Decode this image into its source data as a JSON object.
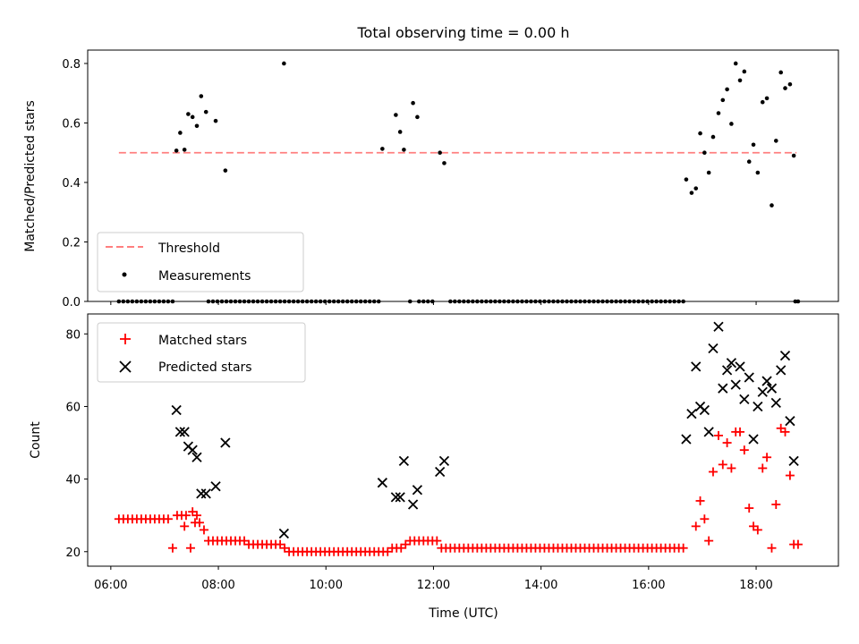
{
  "chart_data": [
    {
      "type": "scatter",
      "title": "Total observing time = 0.00 h",
      "xlabel": "",
      "ylabel": "Matched/Predicted stars",
      "xlim": [
        5.57,
        19.53
      ],
      "ylim": [
        0.0,
        0.845
      ],
      "xticks": [
        6,
        8,
        10,
        12,
        14,
        16,
        18
      ],
      "yticks": [
        0.0,
        0.2,
        0.4,
        0.6,
        0.8
      ],
      "ytick_labels": [
        "0.0",
        "0.2",
        "0.4",
        "0.6",
        "0.8"
      ],
      "legend": {
        "placement": "lower-left",
        "entries": [
          "Threshold",
          "Measurements"
        ]
      },
      "threshold": {
        "name": "Threshold",
        "y": 0.5,
        "x_range": [
          6.15,
          18.75
        ],
        "color": "#ff7f7f",
        "style": "dashed"
      },
      "measurements": {
        "name": "Measurements",
        "color": "#000000",
        "x": [
          7.22,
          7.29,
          7.37,
          7.44,
          7.52,
          7.6,
          7.68,
          7.77,
          7.95,
          8.13,
          9.22,
          11.05,
          11.3,
          11.38,
          11.45,
          11.62,
          11.7,
          12.12,
          12.2,
          16.7,
          16.8,
          16.88,
          16.96,
          17.04,
          17.12,
          17.2,
          17.3,
          17.38,
          17.46,
          17.54,
          17.62,
          17.7,
          17.78,
          17.87,
          17.95,
          18.03,
          18.12,
          18.2,
          18.29,
          18.37,
          18.46,
          18.54,
          18.63,
          18.7
        ],
        "y": [
          0.507,
          0.567,
          0.51,
          0.63,
          0.62,
          0.59,
          0.69,
          0.637,
          0.607,
          0.44,
          0.8,
          0.513,
          0.627,
          0.57,
          0.51,
          0.667,
          0.62,
          0.5,
          0.465,
          0.41,
          0.365,
          0.38,
          0.565,
          0.5,
          0.433,
          0.553,
          0.633,
          0.677,
          0.713,
          0.597,
          0.8,
          0.743,
          0.773,
          0.47,
          0.527,
          0.433,
          0.67,
          0.683,
          0.323,
          0.54,
          0.77,
          0.717,
          0.73,
          0.49
        ]
      },
      "zero_measurements": {
        "x_start": 6.15,
        "x_step": 0.0833,
        "count": 152,
        "gaps": [
          [
            7.15,
            7.75
          ],
          [
            8.0,
            8.05
          ],
          [
            8.12,
            8.13
          ],
          [
            9.2,
            9.23
          ],
          [
            11.0,
            11.55
          ],
          [
            11.62,
            11.7
          ],
          [
            12.05,
            12.25
          ],
          [
            16.7,
            18.7
          ]
        ]
      }
    },
    {
      "type": "scatter",
      "title": "",
      "xlabel": "Time (UTC)",
      "ylabel": "Count",
      "xlim": [
        5.57,
        19.53
      ],
      "ylim": [
        16.0,
        85.5
      ],
      "xticks": [
        6,
        8,
        10,
        12,
        14,
        16,
        18
      ],
      "xtick_labels": [
        "06:00",
        "08:00",
        "10:00",
        "12:00",
        "14:00",
        "16:00",
        "18:00"
      ],
      "yticks": [
        20,
        40,
        60,
        80
      ],
      "ytick_labels": [
        "20",
        "40",
        "60",
        "80"
      ],
      "legend": {
        "placement": "top-left",
        "entries": [
          "Matched stars",
          "Predicted stars"
        ]
      },
      "matched_baseline": {
        "name": "Matched stars",
        "color": "#ff0000",
        "marker": "plus",
        "x_start": 6.15,
        "x_step": 0.0833,
        "x_end": 16.65,
        "segments": [
          [
            6.15,
            7.12,
            29
          ],
          [
            7.15,
            7.45,
            30
          ],
          [
            7.5,
            7.65,
            28
          ],
          [
            7.7,
            7.76,
            26
          ],
          [
            7.8,
            8.5,
            23
          ],
          [
            8.5,
            9.15,
            22
          ],
          [
            9.15,
            9.22,
            21
          ],
          [
            9.25,
            11.15,
            20
          ],
          [
            11.2,
            11.4,
            21
          ],
          [
            11.4,
            11.55,
            22
          ],
          [
            11.55,
            12.08,
            23
          ],
          [
            12.08,
            16.7,
            21
          ]
        ],
        "bumps": [
          {
            "x": 7.37,
            "y": 27
          },
          {
            "x": 7.52,
            "y": 31
          },
          {
            "x": 7.6,
            "y": 30
          }
        ]
      },
      "matched_late": {
        "name": "Matched stars",
        "color": "#ff0000",
        "x": [
          16.88,
          16.96,
          17.04,
          17.12,
          17.2,
          17.3,
          17.38,
          17.46,
          17.54,
          17.62,
          17.7,
          17.78,
          17.87,
          17.95,
          18.03,
          18.12,
          18.2,
          18.29,
          18.37,
          18.46,
          18.54,
          18.63,
          18.7,
          18.78
        ],
        "y": [
          27,
          34,
          29,
          23,
          42,
          52,
          44,
          50,
          43,
          53,
          53,
          48,
          32,
          27,
          26,
          43,
          46,
          21,
          33,
          54,
          53,
          41,
          22,
          22
        ]
      },
      "predicted": {
        "name": "Predicted stars",
        "color": "#000000",
        "marker": "x",
        "x": [
          7.22,
          7.29,
          7.37,
          7.44,
          7.52,
          7.6,
          7.68,
          7.77,
          7.95,
          8.13,
          9.22,
          11.05,
          11.3,
          11.38,
          11.45,
          11.62,
          11.7,
          12.12,
          12.2,
          16.7,
          16.8,
          16.88,
          16.96,
          17.04,
          17.12,
          17.2,
          17.3,
          17.38,
          17.46,
          17.54,
          17.62,
          17.7,
          17.78,
          17.87,
          17.95,
          18.03,
          18.12,
          18.2,
          18.29,
          18.37,
          18.46,
          18.54,
          18.63,
          18.7
        ],
        "y": [
          59,
          53,
          53,
          49,
          48,
          46,
          36,
          36,
          38,
          50,
          25,
          39,
          35,
          35,
          45,
          33,
          37,
          42,
          45,
          51,
          58,
          71,
          60,
          59,
          53,
          76,
          82,
          65,
          70,
          72,
          66,
          71,
          62,
          68,
          51,
          60,
          64,
          67,
          65,
          61,
          70,
          74,
          56,
          45
        ]
      }
    }
  ]
}
